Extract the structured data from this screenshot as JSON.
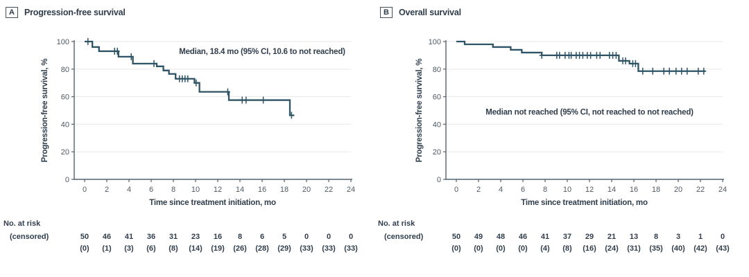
{
  "colors": {
    "curve": "#2d5365",
    "text": "#303e4c",
    "tick_text": "#4e5a64",
    "axis": "#53616b",
    "grid": "#eaeaea",
    "background": "#ffffff"
  },
  "chart_data": [
    {
      "type": "line",
      "subtype": "kaplan-meier-step",
      "panel_letter": "A",
      "title": "Progression-free survival",
      "annotation": "Median, 18.4 mo (95% CI, 10.6 to not reached)",
      "annotation_anchor": {
        "x": 16,
        "y": 93
      },
      "xlabel": "Time since treatment initiation, mo",
      "ylabel": "Progression-free survival, %",
      "xlim": [
        0,
        24
      ],
      "ylim": [
        0,
        100
      ],
      "x_ticks": [
        0,
        2,
        4,
        6,
        8,
        10,
        12,
        14,
        16,
        18,
        20,
        22,
        24
      ],
      "y_ticks": [
        0,
        20,
        40,
        60,
        80,
        100
      ],
      "grid": "horizontal",
      "legend": "none",
      "steps": [
        [
          0,
          100
        ],
        [
          0.7,
          96
        ],
        [
          1.3,
          93
        ],
        [
          3.05,
          89
        ],
        [
          4.35,
          84
        ],
        [
          6.5,
          82
        ],
        [
          7.1,
          79
        ],
        [
          7.6,
          76.5
        ],
        [
          8.2,
          73
        ],
        [
          9.9,
          70
        ],
        [
          10.35,
          63.5
        ],
        [
          13,
          57.5
        ],
        [
          18.5,
          46.5
        ]
      ],
      "curve_end_x": 18.9,
      "censor_marks": [
        [
          0.3,
          100
        ],
        [
          2.7,
          93
        ],
        [
          2.95,
          93
        ],
        [
          4.2,
          89
        ],
        [
          6.25,
          84
        ],
        [
          8.55,
          73
        ],
        [
          8.8,
          73
        ],
        [
          9.05,
          73
        ],
        [
          9.3,
          73
        ],
        [
          10.05,
          70
        ],
        [
          12.9,
          63.5
        ],
        [
          14.2,
          57.5
        ],
        [
          14.55,
          57.5
        ],
        [
          16.1,
          57.5
        ],
        [
          18.65,
          46.5
        ]
      ],
      "risk_table": {
        "label_line1": "No. at risk",
        "label_line2": "(censored)",
        "at_risk": [
          "50",
          "46",
          "41",
          "36",
          "31",
          "23",
          "16",
          "8",
          "6",
          "5",
          "0",
          "0",
          "0"
        ],
        "censored": [
          "(0)",
          "(1)",
          "(3)",
          "(6)",
          "(8)",
          "(14)",
          "(19)",
          "(26)",
          "(28)",
          "(29)",
          "(33)",
          "(33)",
          "(33)"
        ]
      }
    },
    {
      "type": "line",
      "subtype": "kaplan-meier-step",
      "panel_letter": "B",
      "title": "Overall survival",
      "annotation": "Median not reached (95% CI, not reached to not reached)",
      "annotation_anchor": {
        "x": 12,
        "y": 49
      },
      "xlabel": "Time since treatment initiation, mo",
      "ylabel": "Progression-free survival, %",
      "xlim": [
        0,
        24
      ],
      "ylim": [
        0,
        100
      ],
      "x_ticks": [
        0,
        2,
        4,
        6,
        8,
        10,
        12,
        14,
        16,
        18,
        20,
        22,
        24
      ],
      "y_ticks": [
        0,
        20,
        40,
        60,
        80,
        100
      ],
      "grid": "horizontal",
      "legend": "none",
      "steps": [
        [
          0,
          100
        ],
        [
          0.75,
          98
        ],
        [
          3.3,
          96
        ],
        [
          4.9,
          94
        ],
        [
          5.9,
          92
        ],
        [
          7.7,
          90
        ],
        [
          14.65,
          86
        ],
        [
          15.6,
          84
        ],
        [
          16.4,
          78.5
        ]
      ],
      "curve_end_x": 22.45,
      "censor_marks": [
        [
          7.7,
          90
        ],
        [
          9.05,
          90
        ],
        [
          9.3,
          90
        ],
        [
          9.8,
          90
        ],
        [
          10.15,
          90
        ],
        [
          10.35,
          90
        ],
        [
          10.8,
          90
        ],
        [
          11.1,
          90
        ],
        [
          11.4,
          90
        ],
        [
          11.8,
          90
        ],
        [
          12.1,
          90
        ],
        [
          12.65,
          90
        ],
        [
          12.95,
          90
        ],
        [
          13.8,
          90
        ],
        [
          14.1,
          90
        ],
        [
          14.4,
          90
        ],
        [
          15.0,
          86
        ],
        [
          15.25,
          86
        ],
        [
          15.9,
          84
        ],
        [
          16.15,
          84
        ],
        [
          16.8,
          78.5
        ],
        [
          17.7,
          78.5
        ],
        [
          18.7,
          78.5
        ],
        [
          19.2,
          78.5
        ],
        [
          19.8,
          78.5
        ],
        [
          20.3,
          78.5
        ],
        [
          20.8,
          78.5
        ],
        [
          21.8,
          78.5
        ],
        [
          22.3,
          78.5
        ]
      ],
      "risk_table": {
        "label_line1": "No. at risk",
        "label_line2": "(censored)",
        "at_risk": [
          "50",
          "49",
          "48",
          "46",
          "41",
          "37",
          "29",
          "21",
          "13",
          "8",
          "3",
          "1",
          "0"
        ],
        "censored": [
          "(0)",
          "(0)",
          "(0)",
          "(0)",
          "(4)",
          "(8)",
          "(16)",
          "(24)",
          "(31)",
          "(35)",
          "(40)",
          "(42)",
          "(43)"
        ]
      }
    }
  ]
}
